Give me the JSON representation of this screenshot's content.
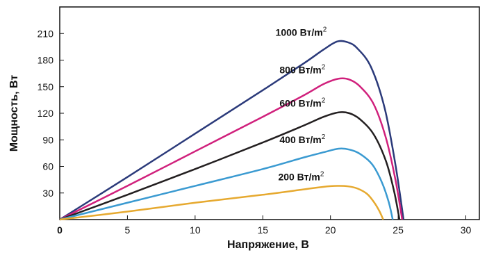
{
  "chart_data": {
    "type": "line",
    "title": "",
    "xlabel": "Напряжение, В",
    "ylabel": "Мощность, Вт",
    "xlim": [
      0,
      31
    ],
    "ylim": [
      0,
      240
    ],
    "xticks": [
      0,
      5,
      10,
      15,
      20,
      25,
      30
    ],
    "yticks": [
      30,
      60,
      90,
      120,
      150,
      180,
      210
    ],
    "grid": false,
    "series": [
      {
        "name": "1000 Вт/m²",
        "label_main": "1000 Вт/m",
        "label_sup": "2",
        "color": "#2b3a7a",
        "points": [
          [
            0,
            0
          ],
          [
            5,
            48
          ],
          [
            10,
            97
          ],
          [
            15,
            146
          ],
          [
            18,
            176
          ],
          [
            19.5,
            192
          ],
          [
            20.5,
            201
          ],
          [
            21.3,
            200
          ],
          [
            22,
            193
          ],
          [
            23,
            172
          ],
          [
            24,
            126
          ],
          [
            24.8,
            62
          ],
          [
            25.4,
            0
          ]
        ]
      },
      {
        "name": "800 Вт/m²",
        "label_main": "800 Вт/m",
        "label_sup": "2",
        "color": "#d0207c",
        "points": [
          [
            0,
            0
          ],
          [
            5,
            38
          ],
          [
            10,
            77
          ],
          [
            15,
            116
          ],
          [
            18,
            140
          ],
          [
            19.5,
            153
          ],
          [
            20.6,
            159
          ],
          [
            21.4,
            158
          ],
          [
            22.2,
            150
          ],
          [
            23.2,
            130
          ],
          [
            24.1,
            92
          ],
          [
            24.8,
            45
          ],
          [
            25.3,
            0
          ]
        ]
      },
      {
        "name": "600 Вт/m²",
        "label_main": "600 Вт/m",
        "label_sup": "2",
        "color": "#231f20",
        "points": [
          [
            0,
            0
          ],
          [
            5,
            28
          ],
          [
            10,
            57
          ],
          [
            15,
            87
          ],
          [
            18,
            106
          ],
          [
            19.5,
            116
          ],
          [
            20.6,
            121
          ],
          [
            21.4,
            120
          ],
          [
            22.2,
            113
          ],
          [
            23.2,
            96
          ],
          [
            24.1,
            66
          ],
          [
            24.7,
            32
          ],
          [
            25.1,
            0
          ]
        ]
      },
      {
        "name": "400 Вт/m²",
        "label_main": "400 Вт/m",
        "label_sup": "2",
        "color": "#3a9ad1",
        "points": [
          [
            0,
            0
          ],
          [
            5,
            19
          ],
          [
            10,
            38
          ],
          [
            15,
            57
          ],
          [
            18,
            70
          ],
          [
            19.5,
            76
          ],
          [
            20.6,
            80
          ],
          [
            21.4,
            79
          ],
          [
            22.2,
            74
          ],
          [
            23.1,
            62
          ],
          [
            23.8,
            42
          ],
          [
            24.3,
            20
          ],
          [
            24.6,
            0
          ]
        ]
      },
      {
        "name": "200 Вт/m²",
        "label_main": "200 Вт/m",
        "label_sup": "2",
        "color": "#e6a92f",
        "points": [
          [
            0,
            0
          ],
          [
            5,
            9
          ],
          [
            10,
            19
          ],
          [
            15,
            28
          ],
          [
            18,
            34
          ],
          [
            19.5,
            37
          ],
          [
            20.5,
            38
          ],
          [
            21.3,
            37.5
          ],
          [
            22,
            35
          ],
          [
            22.7,
            29
          ],
          [
            23.2,
            20
          ],
          [
            23.6,
            10
          ],
          [
            23.9,
            0
          ]
        ]
      }
    ]
  }
}
